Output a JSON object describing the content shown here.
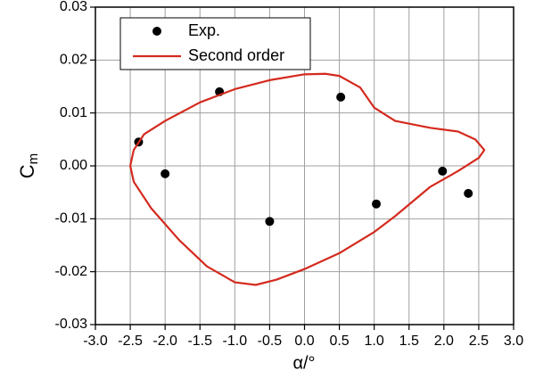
{
  "chart_data": {
    "type": "scatter",
    "xlabel": "α/°",
    "ylabel": "C",
    "ylabel_sub": "m",
    "xlim": [
      -3.0,
      3.0
    ],
    "ylim": [
      -0.03,
      0.03
    ],
    "xticks": [
      {
        "value": -3.0,
        "label": "-3.0"
      },
      -2.5,
      {
        "value": -2.0,
        "label": "-2.0"
      },
      -1.5,
      {
        "value": -1.0,
        "label": "-1.0"
      },
      -0.5,
      {
        "value": 0.0,
        "label": "0.0"
      },
      0.5,
      {
        "value": 1.0,
        "label": "1.0"
      },
      1.5,
      {
        "value": 2.0,
        "label": "2.0"
      },
      2.5,
      {
        "value": 3.0,
        "label": "3.0"
      }
    ],
    "yticks": [
      -0.03,
      -0.02,
      -0.01,
      {
        "value": 0.0,
        "label": "0.00"
      },
      0.01,
      0.02,
      0.03
    ],
    "grid": true,
    "legend": "upper left",
    "series": [
      {
        "name": "Exp.",
        "type": "scatter",
        "color": "#000000",
        "x": [
          -2.38,
          -2.0,
          -1.22,
          -0.5,
          0.52,
          1.03,
          1.98,
          2.35
        ],
        "values": [
          0.0045,
          -0.0015,
          0.014,
          -0.0105,
          0.013,
          -0.0072,
          -0.001,
          -0.0052
        ]
      },
      {
        "name": "Second order",
        "type": "line",
        "color": "#d42a1e",
        "x": [
          -2.5,
          -2.45,
          -2.3,
          -2.0,
          -1.5,
          -1.0,
          -0.5,
          0.0,
          0.3,
          0.5,
          0.8,
          1.0,
          1.3,
          1.8,
          2.2,
          2.45,
          2.58,
          2.5,
          2.2,
          1.8,
          1.3,
          1.0,
          0.5,
          0.0,
          -0.4,
          -0.7,
          -1.0,
          -1.4,
          -1.8,
          -2.2,
          -2.45,
          -2.5
        ],
        "values": [
          0.0,
          0.003,
          0.006,
          0.0085,
          0.012,
          0.0145,
          0.0162,
          0.0173,
          0.0174,
          0.017,
          0.0148,
          0.011,
          0.0085,
          0.0072,
          0.0065,
          0.005,
          0.003,
          0.0015,
          -0.001,
          -0.004,
          -0.0095,
          -0.0125,
          -0.0165,
          -0.0195,
          -0.0215,
          -0.0225,
          -0.022,
          -0.019,
          -0.014,
          -0.008,
          -0.003,
          0.0
        ]
      }
    ]
  }
}
